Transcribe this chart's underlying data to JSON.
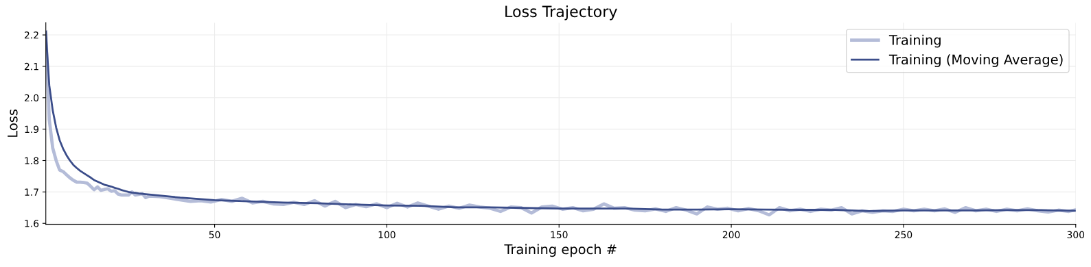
{
  "chart_data": {
    "type": "line",
    "title": "Loss Trajectory",
    "xlabel": "Training epoch #",
    "ylabel": "Loss",
    "xlim": [
      1,
      300
    ],
    "ylim": [
      1.597,
      2.239
    ],
    "xticks": [
      50,
      100,
      150,
      200,
      250,
      300
    ],
    "yticks": [
      1.6,
      1.7,
      1.8,
      1.9,
      {
        "value": 2,
        "label": "2.0"
      },
      2.1,
      2.2
    ],
    "grid": true,
    "legend": "top right",
    "marker": "none",
    "line_style": "solid",
    "series": [
      {
        "name": "Training",
        "color": "#b4bcd8",
        "x": [
          1,
          2,
          3,
          4,
          5,
          6,
          7,
          8,
          9,
          10,
          11,
          12,
          13,
          14,
          15,
          16,
          17,
          18,
          19,
          20,
          21,
          22,
          23,
          24,
          25,
          26,
          27,
          28,
          29,
          30,
          31,
          34,
          37,
          40,
          43,
          46,
          49,
          52,
          55,
          58,
          61,
          64,
          67,
          70,
          73,
          76,
          79,
          82,
          85,
          88,
          91,
          94,
          97,
          100,
          103,
          106,
          109,
          112,
          115,
          118,
          121,
          124,
          127,
          130,
          133,
          136,
          139,
          142,
          145,
          148,
          151,
          154,
          157,
          160,
          163,
          166,
          169,
          172,
          175,
          178,
          181,
          184,
          187,
          190,
          193,
          196,
          199,
          202,
          205,
          208,
          211,
          214,
          217,
          220,
          223,
          226,
          229,
          232,
          235,
          238,
          241,
          244,
          247,
          250,
          253,
          256,
          259,
          262,
          265,
          268,
          271,
          274,
          277,
          280,
          283,
          286,
          289,
          292,
          295,
          298,
          300
        ],
        "values": [
          2.21,
          1.93,
          1.84,
          1.8,
          1.77,
          1.765,
          1.755,
          1.745,
          1.737,
          1.731,
          1.731,
          1.73,
          1.728,
          1.718,
          1.707,
          1.716,
          1.705,
          1.708,
          1.71,
          1.702,
          1.704,
          1.693,
          1.69,
          1.69,
          1.69,
          1.7,
          1.69,
          1.692,
          1.695,
          1.682,
          1.687,
          1.685,
          1.68,
          1.675,
          1.67,
          1.672,
          1.668,
          1.676,
          1.67,
          1.68,
          1.665,
          1.67,
          1.662,
          1.66,
          1.667,
          1.66,
          1.672,
          1.655,
          1.67,
          1.65,
          1.66,
          1.653,
          1.662,
          1.65,
          1.664,
          1.652,
          1.665,
          1.655,
          1.645,
          1.655,
          1.648,
          1.658,
          1.652,
          1.648,
          1.638,
          1.652,
          1.65,
          1.633,
          1.652,
          1.655,
          1.645,
          1.65,
          1.64,
          1.645,
          1.662,
          1.648,
          1.65,
          1.642,
          1.64,
          1.646,
          1.638,
          1.65,
          1.642,
          1.63,
          1.652,
          1.645,
          1.648,
          1.64,
          1.647,
          1.64,
          1.627,
          1.65,
          1.64,
          1.645,
          1.638,
          1.645,
          1.642,
          1.65,
          1.63,
          1.64,
          1.635,
          1.64,
          1.638,
          1.645,
          1.64,
          1.645,
          1.64,
          1.646,
          1.635,
          1.65,
          1.64,
          1.645,
          1.638,
          1.645,
          1.64,
          1.646,
          1.64,
          1.636,
          1.642,
          1.638,
          1.643
        ]
      },
      {
        "name": "Training (Moving Average)",
        "color": "#3b4d8a",
        "x": [
          1,
          2,
          3,
          4,
          5,
          6,
          7,
          8,
          9,
          10,
          11,
          12,
          13,
          14,
          15,
          16,
          17,
          18,
          19,
          20,
          21,
          22,
          23,
          24,
          25,
          26,
          27,
          28,
          29,
          30,
          40,
          50,
          60,
          70,
          80,
          90,
          100,
          110,
          120,
          130,
          140,
          150,
          160,
          170,
          180,
          190,
          200,
          210,
          220,
          230,
          240,
          250,
          260,
          270,
          280,
          290,
          300
        ],
        "values": [
          2.21,
          2.04,
          1.96,
          1.905,
          1.865,
          1.838,
          1.817,
          1.8,
          1.786,
          1.776,
          1.767,
          1.76,
          1.753,
          1.746,
          1.738,
          1.733,
          1.728,
          1.723,
          1.72,
          1.717,
          1.713,
          1.71,
          1.706,
          1.703,
          1.7,
          1.698,
          1.697,
          1.695,
          1.694,
          1.693,
          1.682,
          1.674,
          1.67,
          1.666,
          1.664,
          1.66,
          1.657,
          1.656,
          1.651,
          1.651,
          1.649,
          1.647,
          1.647,
          1.647,
          1.644,
          1.644,
          1.645,
          1.644,
          1.643,
          1.643,
          1.639,
          1.641,
          1.641,
          1.641,
          1.642,
          1.642,
          1.64
        ]
      }
    ]
  }
}
